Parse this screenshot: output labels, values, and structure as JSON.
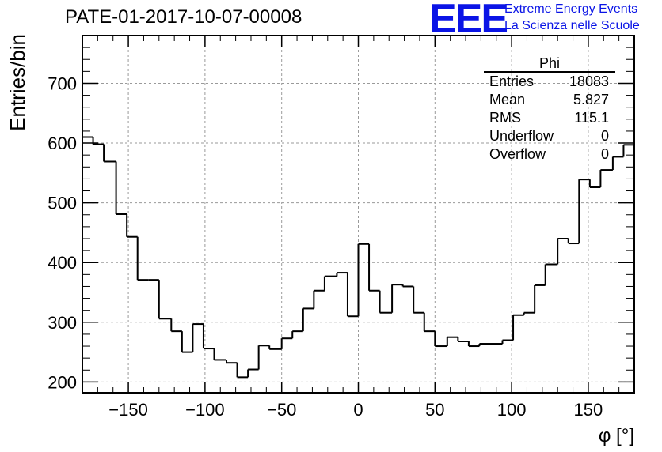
{
  "header": {
    "title": "PATE-01-2017-10-07-00008",
    "logo_text": "EEE",
    "logo_line1": "Extreme Energy Events",
    "logo_line2": "La Scienza nelle Scuole"
  },
  "stats_box": {
    "title": "Phi",
    "rows": [
      {
        "label": "Entries",
        "value": "18083"
      },
      {
        "label": "Mean",
        "value": "5.827"
      },
      {
        "label": "RMS",
        "value": "115.1"
      },
      {
        "label": "Underflow",
        "value": "0"
      },
      {
        "label": "Overflow",
        "value": "0"
      }
    ]
  },
  "chart_data": {
    "type": "histogram",
    "title": "PATE-01-2017-10-07-00008",
    "xlabel": "φ [°]",
    "ylabel": "Entries/bin",
    "xlim": [
      -180,
      180
    ],
    "ylim": [
      182,
      780
    ],
    "xticks": [
      -150,
      -100,
      -50,
      0,
      50,
      100,
      150
    ],
    "xtick_labels": [
      "−150",
      "−100",
      "−50",
      "0",
      "50",
      "100",
      "150"
    ],
    "yticks": [
      200,
      300,
      400,
      500,
      600,
      700
    ],
    "ytick_labels": [
      "200",
      "300",
      "400",
      "500",
      "600",
      "700"
    ],
    "grid": true,
    "line_color": "#000000",
    "bins": [
      {
        "x0": -180,
        "x1": -173,
        "y": 610
      },
      {
        "x0": -173,
        "x1": -166,
        "y": 598
      },
      {
        "x0": -166,
        "x1": -158,
        "y": 569
      },
      {
        "x0": -158,
        "x1": -151,
        "y": 481
      },
      {
        "x0": -151,
        "x1": -144,
        "y": 443
      },
      {
        "x0": -144,
        "x1": -137,
        "y": 371
      },
      {
        "x0": -137,
        "x1": -130,
        "y": 371
      },
      {
        "x0": -130,
        "x1": -122,
        "y": 306
      },
      {
        "x0": -122,
        "x1": -115,
        "y": 285
      },
      {
        "x0": -115,
        "x1": -108,
        "y": 250
      },
      {
        "x0": -108,
        "x1": -101,
        "y": 297
      },
      {
        "x0": -101,
        "x1": -94,
        "y": 256
      },
      {
        "x0": -94,
        "x1": -86,
        "y": 237
      },
      {
        "x0": -86,
        "x1": -79,
        "y": 232
      },
      {
        "x0": -79,
        "x1": -72,
        "y": 208
      },
      {
        "x0": -72,
        "x1": -65,
        "y": 221
      },
      {
        "x0": -65,
        "x1": -58,
        "y": 261
      },
      {
        "x0": -58,
        "x1": -50,
        "y": 255
      },
      {
        "x0": -50,
        "x1": -43,
        "y": 273
      },
      {
        "x0": -43,
        "x1": -36,
        "y": 285
      },
      {
        "x0": -36,
        "x1": -29,
        "y": 323
      },
      {
        "x0": -29,
        "x1": -22,
        "y": 353
      },
      {
        "x0": -22,
        "x1": -14,
        "y": 377
      },
      {
        "x0": -14,
        "x1": -7,
        "y": 383
      },
      {
        "x0": -7,
        "x1": 0,
        "y": 310
      },
      {
        "x0": 0,
        "x1": 7,
        "y": 431
      },
      {
        "x0": 7,
        "x1": 14,
        "y": 353
      },
      {
        "x0": 14,
        "x1": 22,
        "y": 316
      },
      {
        "x0": 22,
        "x1": 29,
        "y": 363
      },
      {
        "x0": 29,
        "x1": 36,
        "y": 360
      },
      {
        "x0": 36,
        "x1": 43,
        "y": 316
      },
      {
        "x0": 43,
        "x1": 50,
        "y": 285
      },
      {
        "x0": 50,
        "x1": 58,
        "y": 260
      },
      {
        "x0": 58,
        "x1": 65,
        "y": 275
      },
      {
        "x0": 65,
        "x1": 72,
        "y": 268
      },
      {
        "x0": 72,
        "x1": 79,
        "y": 260
      },
      {
        "x0": 79,
        "x1": 86,
        "y": 264
      },
      {
        "x0": 86,
        "x1": 94,
        "y": 264
      },
      {
        "x0": 94,
        "x1": 101,
        "y": 270
      },
      {
        "x0": 101,
        "x1": 108,
        "y": 312
      },
      {
        "x0": 108,
        "x1": 115,
        "y": 316
      },
      {
        "x0": 115,
        "x1": 122,
        "y": 362
      },
      {
        "x0": 122,
        "x1": 130,
        "y": 397
      },
      {
        "x0": 130,
        "x1": 137,
        "y": 440
      },
      {
        "x0": 137,
        "x1": 144,
        "y": 432
      },
      {
        "x0": 144,
        "x1": 151,
        "y": 539
      },
      {
        "x0": 151,
        "x1": 158,
        "y": 526
      },
      {
        "x0": 158,
        "x1": 166,
        "y": 555
      },
      {
        "x0": 166,
        "x1": 173,
        "y": 577
      },
      {
        "x0": 173,
        "x1": 180,
        "y": 597
      }
    ]
  }
}
